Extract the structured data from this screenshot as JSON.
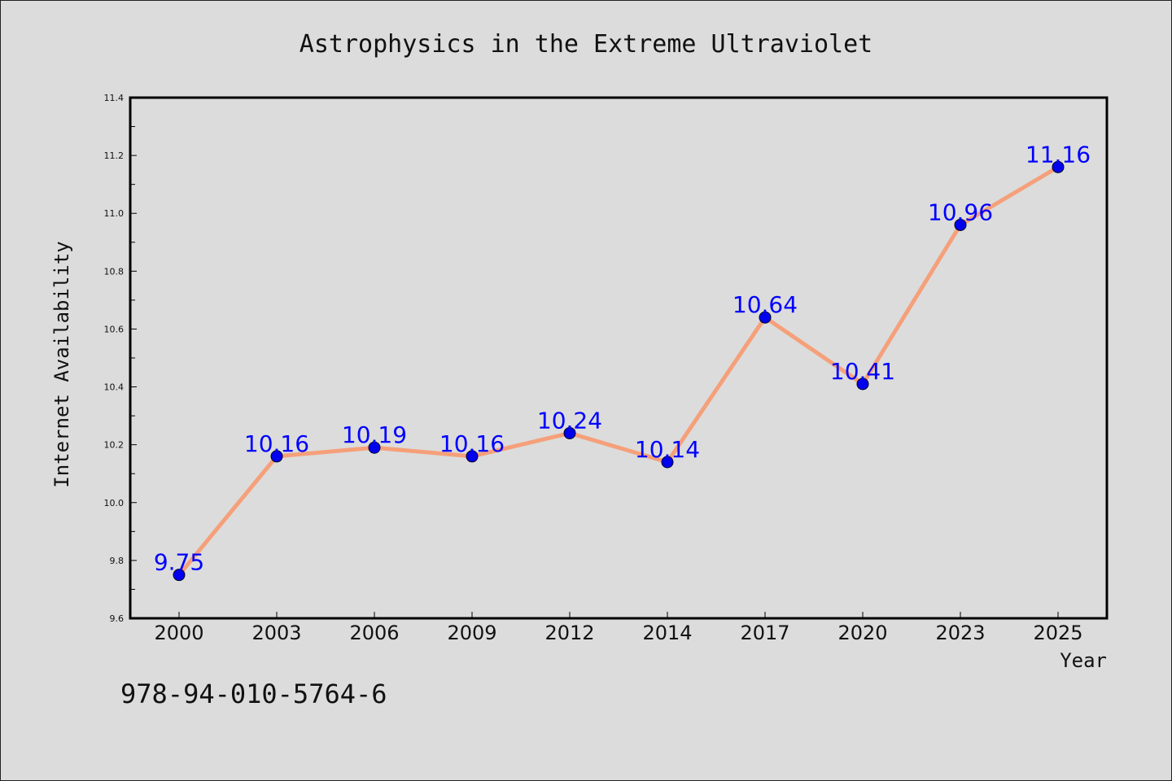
{
  "chart_data": {
    "type": "line",
    "title": "Astrophysics in the Extreme Ultraviolet",
    "xlabel": "Year",
    "ylabel": "Internet Availability",
    "categories": [
      "2000",
      "2003",
      "2006",
      "2009",
      "2012",
      "2014",
      "2017",
      "2020",
      "2023",
      "2025"
    ],
    "series": [
      {
        "values": [
          9.75,
          10.16,
          10.19,
          10.16,
          10.24,
          10.14,
          10.64,
          10.41,
          10.96,
          11.16
        ],
        "line_color": "#f5a07a",
        "marker_color": "#0000ee"
      }
    ],
    "data_labels": [
      "9.75",
      "10.16",
      "10.19",
      "10.16",
      "10.24",
      "10.14",
      "10.64",
      "10.41",
      "10.96",
      "11.16"
    ],
    "ylim": [
      9.6,
      11.4
    ],
    "yticks": [
      "9.6",
      "9.8",
      "10.0",
      "10.2",
      "10.4",
      "10.6",
      "10.8",
      "11.0",
      "11.2",
      "11.4"
    ],
    "grid": false,
    "label_color": "#0000ff"
  },
  "footer_text": "978-94-010-5764-6"
}
